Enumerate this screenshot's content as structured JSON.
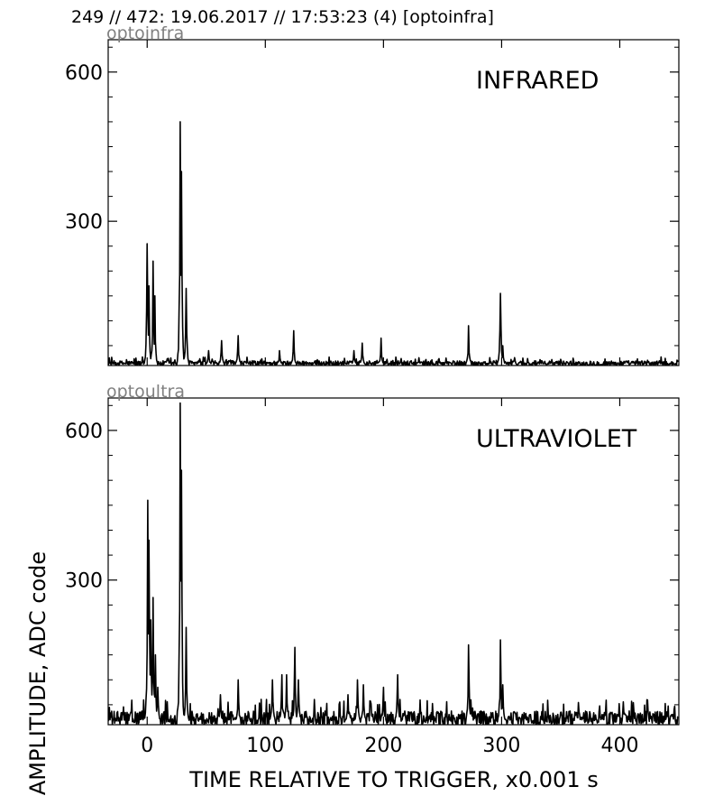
{
  "header": {
    "title": "249 // 472:   19.06.2017 // 17:53:23 (4)  [optoinfra]"
  },
  "figure": {
    "xlabel": "TIME RELATIVE TO TRIGGER,   x0.001 s",
    "ylabel": "AMPLITUDE,  ADC code"
  },
  "colors": {
    "line": "#000000",
    "panel_tag": "#808080",
    "frame": "#000000"
  },
  "chart_data": [
    {
      "type": "line",
      "tag": "optoinfra",
      "title": "INFRARED",
      "xlim": [
        -33,
        450
      ],
      "ylim": [
        10,
        665
      ],
      "xticks": [
        0,
        100,
        200,
        300,
        400
      ],
      "yticks": [
        300,
        600
      ],
      "grid": false,
      "baseline": 13,
      "noise": 10,
      "peaks": [
        {
          "x": 0,
          "y": 255
        },
        {
          "x": 1.5,
          "y": 170
        },
        {
          "x": 5,
          "y": 220
        },
        {
          "x": 6.5,
          "y": 150
        },
        {
          "x": 28,
          "y": 500
        },
        {
          "x": 29,
          "y": 400
        },
        {
          "x": 33,
          "y": 165
        },
        {
          "x": 52,
          "y": 40
        },
        {
          "x": 63,
          "y": 60
        },
        {
          "x": 77,
          "y": 70
        },
        {
          "x": 112,
          "y": 40
        },
        {
          "x": 124,
          "y": 80
        },
        {
          "x": 175,
          "y": 40
        },
        {
          "x": 182,
          "y": 55
        },
        {
          "x": 198,
          "y": 65
        },
        {
          "x": 272,
          "y": 90
        },
        {
          "x": 299,
          "y": 155
        },
        {
          "x": 301,
          "y": 50
        }
      ]
    },
    {
      "type": "line",
      "tag": "optoultra",
      "title": "ULTRAVIOLET",
      "xlim": [
        -33,
        450
      ],
      "ylim": [
        10,
        665
      ],
      "xticks": [
        0,
        100,
        200,
        300,
        400
      ],
      "yticks": [
        300,
        600
      ],
      "grid": false,
      "baseline": 18,
      "noise": 30,
      "peaks": [
        {
          "x": 0.5,
          "y": 460
        },
        {
          "x": 1.5,
          "y": 380
        },
        {
          "x": 3,
          "y": 220
        },
        {
          "x": 5,
          "y": 265
        },
        {
          "x": 7,
          "y": 150
        },
        {
          "x": 9,
          "y": 85
        },
        {
          "x": 28,
          "y": 655
        },
        {
          "x": 29,
          "y": 520
        },
        {
          "x": 33,
          "y": 205
        },
        {
          "x": 62,
          "y": 70
        },
        {
          "x": 77,
          "y": 100
        },
        {
          "x": 106,
          "y": 100
        },
        {
          "x": 114,
          "y": 110
        },
        {
          "x": 118,
          "y": 110
        },
        {
          "x": 125,
          "y": 165
        },
        {
          "x": 128,
          "y": 100
        },
        {
          "x": 170,
          "y": 70
        },
        {
          "x": 178,
          "y": 100
        },
        {
          "x": 183,
          "y": 90
        },
        {
          "x": 200,
          "y": 85
        },
        {
          "x": 212,
          "y": 110
        },
        {
          "x": 272,
          "y": 170
        },
        {
          "x": 274,
          "y": 60
        },
        {
          "x": 299,
          "y": 180
        },
        {
          "x": 301,
          "y": 90
        },
        {
          "x": 385,
          "y": 30
        },
        {
          "x": 445,
          "y": 30
        }
      ]
    }
  ]
}
